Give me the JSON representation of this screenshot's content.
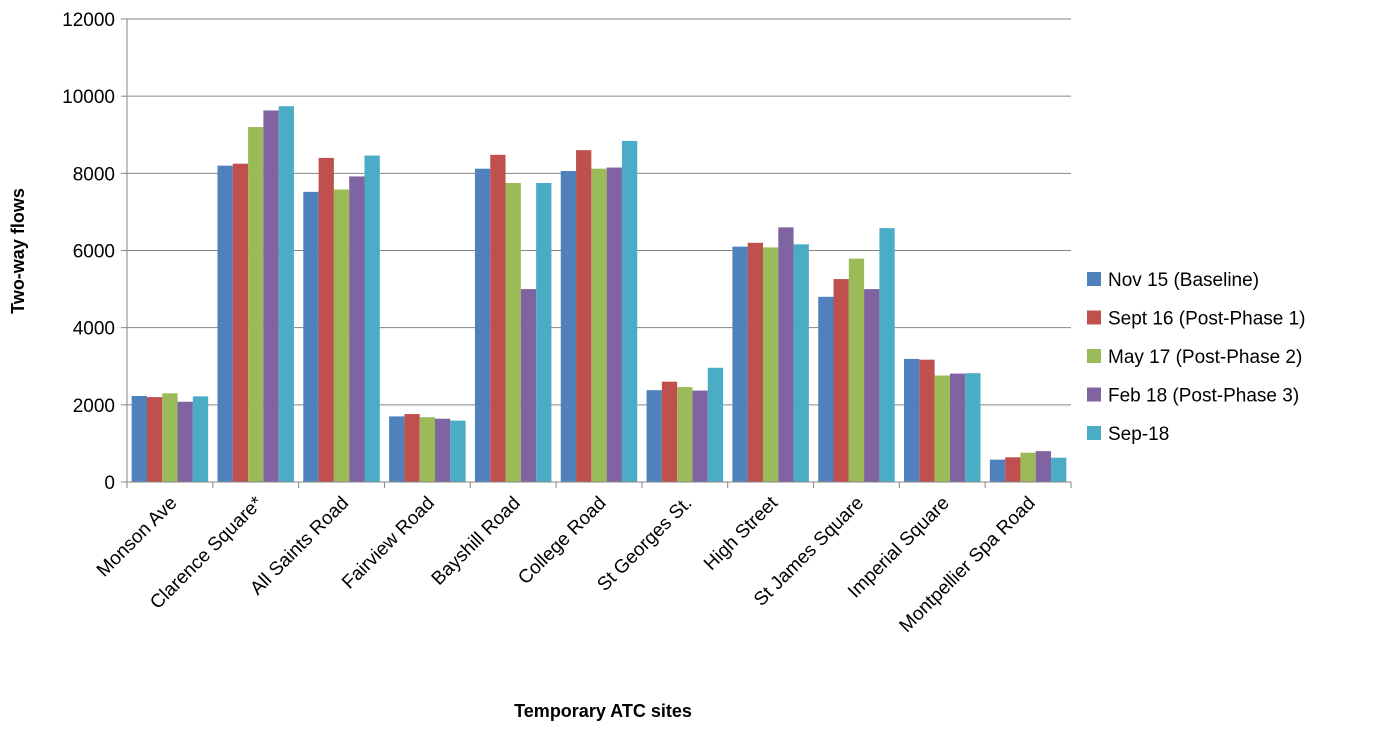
{
  "chart_data": {
    "type": "bar",
    "title": "",
    "xlabel": "Temporary ATC sites",
    "ylabel": "Two-way flows",
    "ylim": [
      0,
      12000
    ],
    "yticks": [
      0,
      2000,
      4000,
      6000,
      8000,
      10000,
      12000
    ],
    "grid": true,
    "legend_position": "right",
    "categories": [
      "Monson Ave",
      "Clarence Square*",
      "All Saints Road",
      "Fairview Road",
      "Bayshill Road",
      "College Road",
      "St Georges St.",
      "High Street",
      "St James Square",
      "Imperial Square",
      "Montpellier Spa Road"
    ],
    "series": [
      {
        "name": "Nov 15 (Baseline)",
        "color": "#4F81BD",
        "values": [
          2230,
          8200,
          7520,
          1700,
          8120,
          8060,
          2380,
          6100,
          4800,
          3190,
          580
        ]
      },
      {
        "name": "Sept 16 (Post-Phase 1)",
        "color": "#C0504D",
        "values": [
          2200,
          8250,
          8400,
          1760,
          8480,
          8600,
          2600,
          6200,
          5260,
          3170,
          640
        ]
      },
      {
        "name": "May 17 (Post-Phase 2)",
        "color": "#9BBB59",
        "values": [
          2300,
          9200,
          7580,
          1680,
          7750,
          8120,
          2460,
          6080,
          5790,
          2760,
          760
        ]
      },
      {
        "name": "Feb 18 (Post-Phase 3)",
        "color": "#8064A2",
        "values": [
          2080,
          9630,
          7920,
          1640,
          5000,
          8150,
          2370,
          6600,
          5000,
          2810,
          800
        ]
      },
      {
        "name": "Sep-18",
        "color": "#4BACC6",
        "values": [
          2220,
          9740,
          8460,
          1590,
          7750,
          8840,
          2960,
          6160,
          6580,
          2820,
          630
        ]
      }
    ]
  }
}
